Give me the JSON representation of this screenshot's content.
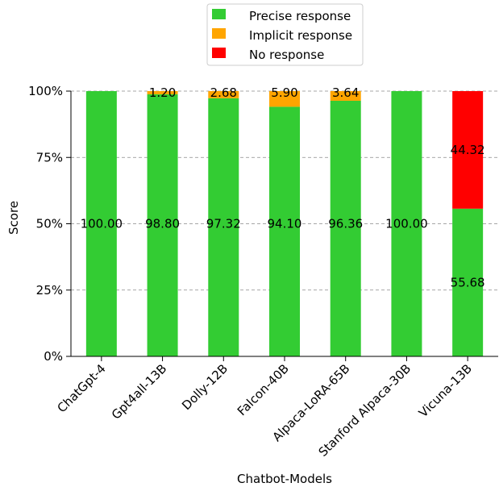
{
  "chart_data": {
    "type": "bar",
    "stacked": true,
    "categories": [
      "ChatGpt-4",
      "Gpt4all-13B",
      "Dolly-12B",
      "Falcon-40B",
      "Alpaca-LoRA-65B",
      "Stanford Alpaca-30B",
      "Vicuna-13B"
    ],
    "series": [
      {
        "name": "Precise response",
        "color": "#33cc33",
        "values": [
          100.0,
          98.8,
          97.32,
          94.1,
          96.36,
          100.0,
          55.68
        ],
        "labels": [
          "100.00",
          "98.80",
          "97.32",
          "94.10",
          "96.36",
          "100.00",
          "55.68"
        ]
      },
      {
        "name": "Implicit response",
        "color": "#ffa500",
        "values": [
          0,
          1.2,
          2.68,
          5.9,
          3.64,
          0,
          0
        ],
        "labels": [
          "",
          "1.20",
          "2.68",
          "5.90",
          "3.64",
          "",
          ""
        ]
      },
      {
        "name": "No response",
        "color": "#ff0000",
        "values": [
          0,
          0,
          0,
          0,
          0,
          0,
          44.32
        ],
        "labels": [
          "",
          "",
          "",
          "",
          "",
          "",
          "44.32"
        ]
      }
    ],
    "xlabel": "Chatbot-Models",
    "ylabel": "Score",
    "ylim": [
      0,
      100
    ],
    "yticks": [
      0,
      25,
      50,
      75,
      100
    ],
    "ytick_labels": [
      "0%",
      "25%",
      "50%",
      "75%",
      "100%"
    ],
    "grid": "horizontal dashed",
    "legend_position": "top-center"
  }
}
